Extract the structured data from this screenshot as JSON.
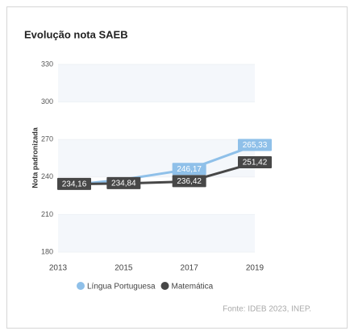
{
  "chart_data": {
    "type": "line",
    "title": "Evolução nota SAEB",
    "y_label": "Nota padronizada",
    "x": [
      2013,
      2015,
      2017,
      2019
    ],
    "xlim": [
      2013,
      2019
    ],
    "xticks": [
      2013,
      2015,
      2017,
      2019
    ],
    "ylim": [
      180,
      330
    ],
    "yticks": [
      180,
      210,
      240,
      270,
      300,
      330
    ],
    "grid": true,
    "legend": "bottom",
    "series": [
      {
        "name": "Língua Portuguesa",
        "color": "#8fc0e9",
        "values": [
          232.5,
          238.0,
          246.17,
          265.33
        ],
        "value_labels": [
          null,
          null,
          "246,17",
          "265,33"
        ]
      },
      {
        "name": "Matemática",
        "color": "#474747",
        "values": [
          234.16,
          234.84,
          236.42,
          251.42
        ],
        "value_labels": [
          "234,16",
          "234,84",
          "236,42",
          "251,42"
        ]
      }
    ],
    "source": "Fonte: IDEB 2023, INEP."
  }
}
